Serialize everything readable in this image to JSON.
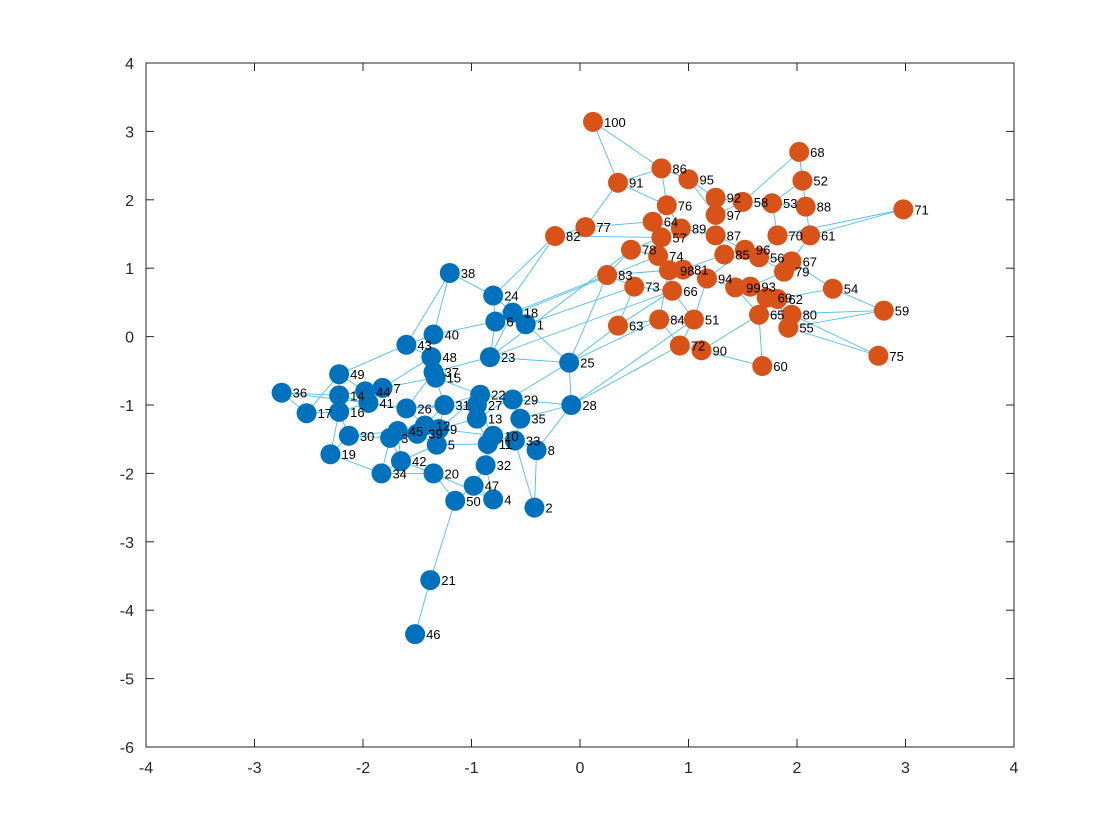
{
  "chart_data": {
    "type": "scatter",
    "subtype": "graph-plot",
    "title": "",
    "xlabel": "",
    "ylabel": "",
    "xlim": [
      -4,
      4
    ],
    "ylim": [
      -6,
      4
    ],
    "xticks": [
      "-4",
      "-3",
      "-2",
      "-1",
      "0",
      "1",
      "2",
      "3",
      "4"
    ],
    "yticks": [
      "-6",
      "-5",
      "-4",
      "-3",
      "-2",
      "-1",
      "0",
      "1",
      "2",
      "3",
      "4"
    ],
    "grid": false,
    "colors": {
      "group_a": "#0072BD",
      "group_b": "#D95319",
      "edge": "#4DBEEE",
      "axis": "#262626",
      "background": "#ffffff"
    },
    "nodes": [
      {
        "id": 1,
        "x": -0.5,
        "y": 0.18,
        "group": "a"
      },
      {
        "id": 2,
        "x": -0.42,
        "y": -2.5,
        "group": "a"
      },
      {
        "id": 3,
        "x": -1.75,
        "y": -1.48,
        "group": "a"
      },
      {
        "id": 4,
        "x": -0.8,
        "y": -2.38,
        "group": "a"
      },
      {
        "id": 5,
        "x": -1.32,
        "y": -1.58,
        "group": "a"
      },
      {
        "id": 6,
        "x": -0.78,
        "y": 0.22,
        "group": "a"
      },
      {
        "id": 7,
        "x": -1.82,
        "y": -0.75,
        "group": "a"
      },
      {
        "id": 8,
        "x": -0.4,
        "y": -1.66,
        "group": "a"
      },
      {
        "id": 9,
        "x": -1.3,
        "y": -1.35,
        "group": "a"
      },
      {
        "id": 10,
        "x": -0.8,
        "y": -1.45,
        "group": "a"
      },
      {
        "id": 11,
        "x": -0.85,
        "y": -1.57,
        "group": "a"
      },
      {
        "id": 12,
        "x": -1.43,
        "y": -1.3,
        "group": "a"
      },
      {
        "id": 13,
        "x": -0.95,
        "y": -1.2,
        "group": "a"
      },
      {
        "id": 14,
        "x": -2.22,
        "y": -0.86,
        "group": "a"
      },
      {
        "id": 15,
        "x": -1.33,
        "y": -0.6,
        "group": "a"
      },
      {
        "id": 16,
        "x": -2.22,
        "y": -1.1,
        "group": "a"
      },
      {
        "id": 17,
        "x": -2.52,
        "y": -1.12,
        "group": "a"
      },
      {
        "id": 18,
        "x": -0.62,
        "y": 0.35,
        "group": "a"
      },
      {
        "id": 19,
        "x": -2.3,
        "y": -1.72,
        "group": "a"
      },
      {
        "id": 20,
        "x": -1.35,
        "y": -2.0,
        "group": "a"
      },
      {
        "id": 21,
        "x": -1.38,
        "y": -3.56,
        "group": "a"
      },
      {
        "id": 22,
        "x": -0.92,
        "y": -0.85,
        "group": "a"
      },
      {
        "id": 23,
        "x": -0.83,
        "y": -0.3,
        "group": "a"
      },
      {
        "id": 24,
        "x": -0.8,
        "y": 0.6,
        "group": "a"
      },
      {
        "id": 25,
        "x": -0.1,
        "y": -0.38,
        "group": "a"
      },
      {
        "id": 26,
        "x": -1.6,
        "y": -1.05,
        "group": "a"
      },
      {
        "id": 27,
        "x": -0.95,
        "y": -1.0,
        "group": "a"
      },
      {
        "id": 28,
        "x": -0.08,
        "y": -1.0,
        "group": "a"
      },
      {
        "id": 29,
        "x": -0.62,
        "y": -0.92,
        "group": "a"
      },
      {
        "id": 30,
        "x": -2.13,
        "y": -1.45,
        "group": "a"
      },
      {
        "id": 31,
        "x": -1.25,
        "y": -1.0,
        "group": "a"
      },
      {
        "id": 32,
        "x": -0.87,
        "y": -1.88,
        "group": "a"
      },
      {
        "id": 33,
        "x": -0.6,
        "y": -1.52,
        "group": "a"
      },
      {
        "id": 34,
        "x": -1.83,
        "y": -2.0,
        "group": "a"
      },
      {
        "id": 35,
        "x": -0.55,
        "y": -1.2,
        "group": "a"
      },
      {
        "id": 36,
        "x": -2.75,
        "y": -0.82,
        "group": "a"
      },
      {
        "id": 37,
        "x": -1.35,
        "y": -0.52,
        "group": "a"
      },
      {
        "id": 38,
        "x": -1.2,
        "y": 0.93,
        "group": "a"
      },
      {
        "id": 39,
        "x": -1.5,
        "y": -1.42,
        "group": "a"
      },
      {
        "id": 40,
        "x": -1.35,
        "y": 0.03,
        "group": "a"
      },
      {
        "id": 41,
        "x": -1.95,
        "y": -0.97,
        "group": "a"
      },
      {
        "id": 42,
        "x": -1.65,
        "y": -1.82,
        "group": "a"
      },
      {
        "id": 43,
        "x": -1.6,
        "y": -0.12,
        "group": "a"
      },
      {
        "id": 44,
        "x": -1.98,
        "y": -0.8,
        "group": "a"
      },
      {
        "id": 45,
        "x": -1.68,
        "y": -1.38,
        "group": "a"
      },
      {
        "id": 46,
        "x": -1.52,
        "y": -4.35,
        "group": "a"
      },
      {
        "id": 47,
        "x": -0.98,
        "y": -2.18,
        "group": "a"
      },
      {
        "id": 48,
        "x": -1.37,
        "y": -0.3,
        "group": "a"
      },
      {
        "id": 49,
        "x": -2.22,
        "y": -0.55,
        "group": "a"
      },
      {
        "id": 50,
        "x": -1.15,
        "y": -2.4,
        "group": "a"
      },
      {
        "id": 51,
        "x": 1.05,
        "y": 0.25,
        "group": "b"
      },
      {
        "id": 52,
        "x": 2.05,
        "y": 2.28,
        "group": "b"
      },
      {
        "id": 53,
        "x": 1.77,
        "y": 1.95,
        "group": "b"
      },
      {
        "id": 54,
        "x": 2.33,
        "y": 0.7,
        "group": "b"
      },
      {
        "id": 55,
        "x": 1.92,
        "y": 0.13,
        "group": "b"
      },
      {
        "id": 56,
        "x": 1.65,
        "y": 1.16,
        "group": "b"
      },
      {
        "id": 57,
        "x": 0.75,
        "y": 1.45,
        "group": "b"
      },
      {
        "id": 58,
        "x": 1.5,
        "y": 1.97,
        "group": "b"
      },
      {
        "id": 59,
        "x": 2.8,
        "y": 0.38,
        "group": "b"
      },
      {
        "id": 60,
        "x": 1.68,
        "y": -0.43,
        "group": "b"
      },
      {
        "id": 61,
        "x": 2.12,
        "y": 1.48,
        "group": "b"
      },
      {
        "id": 62,
        "x": 1.82,
        "y": 0.55,
        "group": "b"
      },
      {
        "id": 63,
        "x": 0.35,
        "y": 0.16,
        "group": "b"
      },
      {
        "id": 64,
        "x": 0.67,
        "y": 1.68,
        "group": "b"
      },
      {
        "id": 65,
        "x": 1.65,
        "y": 0.32,
        "group": "b"
      },
      {
        "id": 66,
        "x": 0.85,
        "y": 0.67,
        "group": "b"
      },
      {
        "id": 67,
        "x": 1.95,
        "y": 1.1,
        "group": "b"
      },
      {
        "id": 68,
        "x": 2.02,
        "y": 2.7,
        "group": "b"
      },
      {
        "id": 69,
        "x": 1.72,
        "y": 0.57,
        "group": "b"
      },
      {
        "id": 70,
        "x": 1.82,
        "y": 1.48,
        "group": "b"
      },
      {
        "id": 71,
        "x": 2.98,
        "y": 1.86,
        "group": "b"
      },
      {
        "id": 72,
        "x": 0.92,
        "y": -0.13,
        "group": "b"
      },
      {
        "id": 73,
        "x": 0.5,
        "y": 0.73,
        "group": "b"
      },
      {
        "id": 74,
        "x": 0.72,
        "y": 1.18,
        "group": "b"
      },
      {
        "id": 75,
        "x": 2.75,
        "y": -0.28,
        "group": "b"
      },
      {
        "id": 76,
        "x": 0.8,
        "y": 1.92,
        "group": "b"
      },
      {
        "id": 77,
        "x": 0.05,
        "y": 1.6,
        "group": "b"
      },
      {
        "id": 78,
        "x": 0.47,
        "y": 1.27,
        "group": "b"
      },
      {
        "id": 79,
        "x": 1.88,
        "y": 0.95,
        "group": "b"
      },
      {
        "id": 80,
        "x": 1.95,
        "y": 0.32,
        "group": "b"
      },
      {
        "id": 81,
        "x": 0.95,
        "y": 0.98,
        "group": "b"
      },
      {
        "id": 82,
        "x": -0.23,
        "y": 1.47,
        "group": "b"
      },
      {
        "id": 83,
        "x": 0.25,
        "y": 0.9,
        "group": "b"
      },
      {
        "id": 84,
        "x": 0.73,
        "y": 0.25,
        "group": "b"
      },
      {
        "id": 85,
        "x": 1.33,
        "y": 1.2,
        "group": "b"
      },
      {
        "id": 86,
        "x": 0.75,
        "y": 2.46,
        "group": "b"
      },
      {
        "id": 87,
        "x": 1.25,
        "y": 1.48,
        "group": "b"
      },
      {
        "id": 88,
        "x": 2.08,
        "y": 1.9,
        "group": "b"
      },
      {
        "id": 89,
        "x": 0.93,
        "y": 1.58,
        "group": "b"
      },
      {
        "id": 90,
        "x": 1.12,
        "y": -0.2,
        "group": "b"
      },
      {
        "id": 91,
        "x": 0.35,
        "y": 2.25,
        "group": "b"
      },
      {
        "id": 92,
        "x": 1.25,
        "y": 2.03,
        "group": "b"
      },
      {
        "id": 93,
        "x": 1.57,
        "y": 0.73,
        "group": "b"
      },
      {
        "id": 94,
        "x": 1.17,
        "y": 0.85,
        "group": "b"
      },
      {
        "id": 95,
        "x": 1.0,
        "y": 2.3,
        "group": "b"
      },
      {
        "id": 96,
        "x": 1.52,
        "y": 1.27,
        "group": "b"
      },
      {
        "id": 97,
        "x": 1.25,
        "y": 1.78,
        "group": "b"
      },
      {
        "id": 98,
        "x": 0.82,
        "y": 0.97,
        "group": "b"
      },
      {
        "id": 99,
        "x": 1.43,
        "y": 0.72,
        "group": "b"
      },
      {
        "id": 100,
        "x": 0.12,
        "y": 3.14,
        "group": "b"
      }
    ],
    "edges": [
      [
        46,
        21
      ],
      [
        21,
        50
      ],
      [
        50,
        47
      ],
      [
        50,
        20
      ],
      [
        47,
        4
      ],
      [
        47,
        32
      ],
      [
        4,
        32
      ],
      [
        4,
        20
      ],
      [
        2,
        8
      ],
      [
        2,
        33
      ],
      [
        8,
        28
      ],
      [
        8,
        33
      ],
      [
        33,
        10
      ],
      [
        10,
        11
      ],
      [
        11,
        13
      ],
      [
        13,
        27
      ],
      [
        27,
        22
      ],
      [
        22,
        29
      ],
      [
        29,
        35
      ],
      [
        35,
        33
      ],
      [
        32,
        11
      ],
      [
        32,
        10
      ],
      [
        20,
        34
      ],
      [
        34,
        42
      ],
      [
        42,
        3
      ],
      [
        3,
        45
      ],
      [
        45,
        30
      ],
      [
        30,
        19
      ],
      [
        19,
        16
      ],
      [
        16,
        17
      ],
      [
        17,
        36
      ],
      [
        36,
        14
      ],
      [
        14,
        49
      ],
      [
        49,
        44
      ],
      [
        44,
        7
      ],
      [
        7,
        41
      ],
      [
        41,
        26
      ],
      [
        26,
        31
      ],
      [
        31,
        9
      ],
      [
        9,
        5
      ],
      [
        5,
        39
      ],
      [
        39,
        12
      ],
      [
        12,
        45
      ],
      [
        12,
        26
      ],
      [
        14,
        41
      ],
      [
        16,
        41
      ],
      [
        30,
        3
      ],
      [
        34,
        19
      ],
      [
        42,
        20
      ],
      [
        9,
        13
      ],
      [
        5,
        11
      ],
      [
        39,
        3
      ],
      [
        31,
        22
      ],
      [
        31,
        15
      ],
      [
        15,
        37
      ],
      [
        37,
        48
      ],
      [
        48,
        43
      ],
      [
        43,
        40
      ],
      [
        40,
        38
      ],
      [
        38,
        24
      ],
      [
        24,
        6
      ],
      [
        6,
        18
      ],
      [
        18,
        1
      ],
      [
        1,
        25
      ],
      [
        25,
        23
      ],
      [
        23,
        37
      ],
      [
        23,
        6
      ],
      [
        40,
        6
      ],
      [
        43,
        49
      ],
      [
        48,
        7
      ],
      [
        15,
        44
      ],
      [
        37,
        26
      ],
      [
        28,
        25
      ],
      [
        28,
        35
      ],
      [
        25,
        13
      ],
      [
        29,
        28
      ],
      [
        27,
        10
      ],
      [
        9,
        10
      ],
      [
        45,
        42
      ],
      [
        14,
        7
      ],
      [
        17,
        49
      ],
      [
        36,
        41
      ],
      [
        12,
        31
      ],
      [
        26,
        27
      ],
      [
        9,
        22
      ],
      [
        5,
        42
      ],
      [
        30,
        16
      ],
      [
        3,
        34
      ],
      [
        24,
        1
      ],
      [
        38,
        43
      ],
      [
        18,
        23
      ],
      [
        22,
        15
      ],
      [
        100,
        91
      ],
      [
        100,
        86
      ],
      [
        91,
        77
      ],
      [
        91,
        76
      ],
      [
        86,
        95
      ],
      [
        86,
        76
      ],
      [
        95,
        92
      ],
      [
        92,
        58
      ],
      [
        58,
        53
      ],
      [
        53,
        52
      ],
      [
        52,
        68
      ],
      [
        68,
        88
      ],
      [
        88,
        61
      ],
      [
        61,
        70
      ],
      [
        70,
        53
      ],
      [
        71,
        61
      ],
      [
        71,
        70
      ],
      [
        92,
        97
      ],
      [
        97,
        87
      ],
      [
        87,
        89
      ],
      [
        89,
        64
      ],
      [
        64,
        76
      ],
      [
        64,
        57
      ],
      [
        57,
        74
      ],
      [
        74,
        78
      ],
      [
        78,
        83
      ],
      [
        83,
        73
      ],
      [
        73,
        66
      ],
      [
        66,
        98
      ],
      [
        98,
        81
      ],
      [
        81,
        94
      ],
      [
        94,
        99
      ],
      [
        99,
        93
      ],
      [
        93,
        69
      ],
      [
        69,
        62
      ],
      [
        62,
        65
      ],
      [
        65,
        80
      ],
      [
        80,
        55
      ],
      [
        55,
        59
      ],
      [
        59,
        54
      ],
      [
        54,
        67
      ],
      [
        67,
        79
      ],
      [
        79,
        56
      ],
      [
        56,
        96
      ],
      [
        96,
        85
      ],
      [
        85,
        87
      ],
      [
        62,
        54
      ],
      [
        75,
        55
      ],
      [
        75,
        80
      ],
      [
        60,
        65
      ],
      [
        60,
        90
      ],
      [
        90,
        72
      ],
      [
        72,
        51
      ],
      [
        51,
        84
      ],
      [
        84,
        63
      ],
      [
        63,
        73
      ],
      [
        66,
        51
      ],
      [
        84,
        98
      ],
      [
        82,
        77
      ],
      [
        77,
        64
      ],
      [
        82,
        57
      ],
      [
        57,
        89
      ],
      [
        74,
        98
      ],
      [
        81,
        85
      ],
      [
        94,
        96
      ],
      [
        93,
        79
      ],
      [
        69,
        80
      ],
      [
        65,
        99
      ],
      [
        56,
        67
      ],
      [
        97,
        58
      ],
      [
        76,
        89
      ],
      [
        87,
        96
      ],
      [
        86,
        91
      ],
      [
        95,
        97
      ],
      [
        53,
        88
      ],
      [
        68,
        58
      ],
      [
        78,
        57
      ],
      [
        83,
        98
      ],
      [
        63,
        66
      ],
      [
        51,
        94
      ],
      [
        72,
        84
      ],
      [
        90,
        65
      ],
      [
        59,
        65
      ],
      [
        55,
        62
      ],
      [
        61,
        67
      ],
      [
        70,
        56
      ],
      [
        82,
        24
      ],
      [
        82,
        6
      ],
      [
        83,
        18
      ],
      [
        83,
        25
      ],
      [
        63,
        25
      ],
      [
        73,
        1
      ],
      [
        51,
        28
      ],
      [
        72,
        28
      ],
      [
        84,
        25
      ],
      [
        74,
        6
      ],
      [
        78,
        23
      ],
      [
        66,
        23
      ]
    ]
  }
}
